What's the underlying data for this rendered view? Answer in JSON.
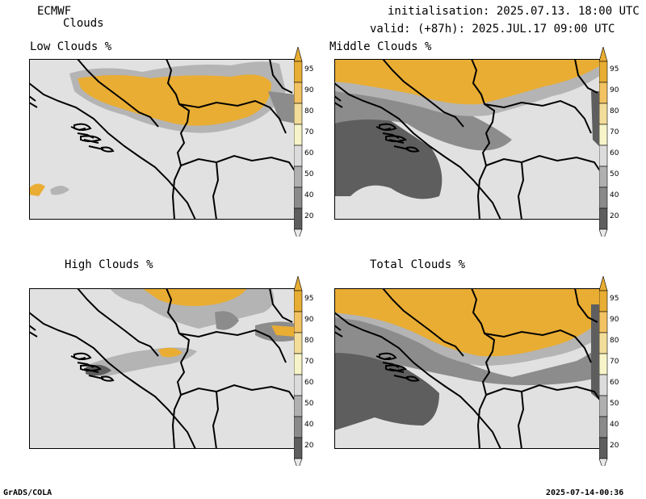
{
  "header": {
    "model": "ECMWF",
    "product": "Clouds",
    "init_line": "initialisation: 2025.07.13. 18:00 UTC",
    "valid_line": "valid: (+87h): 2025.JUL.17 09:00 UTC"
  },
  "panels": [
    {
      "title": "Low Clouds %"
    },
    {
      "title": "Middle Clouds %"
    },
    {
      "title": "High Clouds %"
    },
    {
      "title": "Total Clouds %"
    }
  ],
  "colorbar": {
    "levels": [
      "95",
      "90",
      "80",
      "70",
      "60",
      "50",
      "40",
      "20"
    ],
    "colors": [
      "#e8ad33",
      "#f2c263",
      "#f3dd9a",
      "#f6f4c8",
      "#dcdcdc",
      "#b0b0b0",
      "#8a8a8a",
      "#5e5e5e",
      "#e8e8e8"
    ]
  },
  "palette": {
    "background": "#e1e1e1",
    "gold": "#e9ad33",
    "dark_grey": "#5e5e5e",
    "mid_grey": "#8c8c8c",
    "light_grey": "#b4b4b4",
    "border": "#000000"
  },
  "footer": {
    "left": "GrADS/COLA",
    "right": "2025-07-14-00:36"
  }
}
